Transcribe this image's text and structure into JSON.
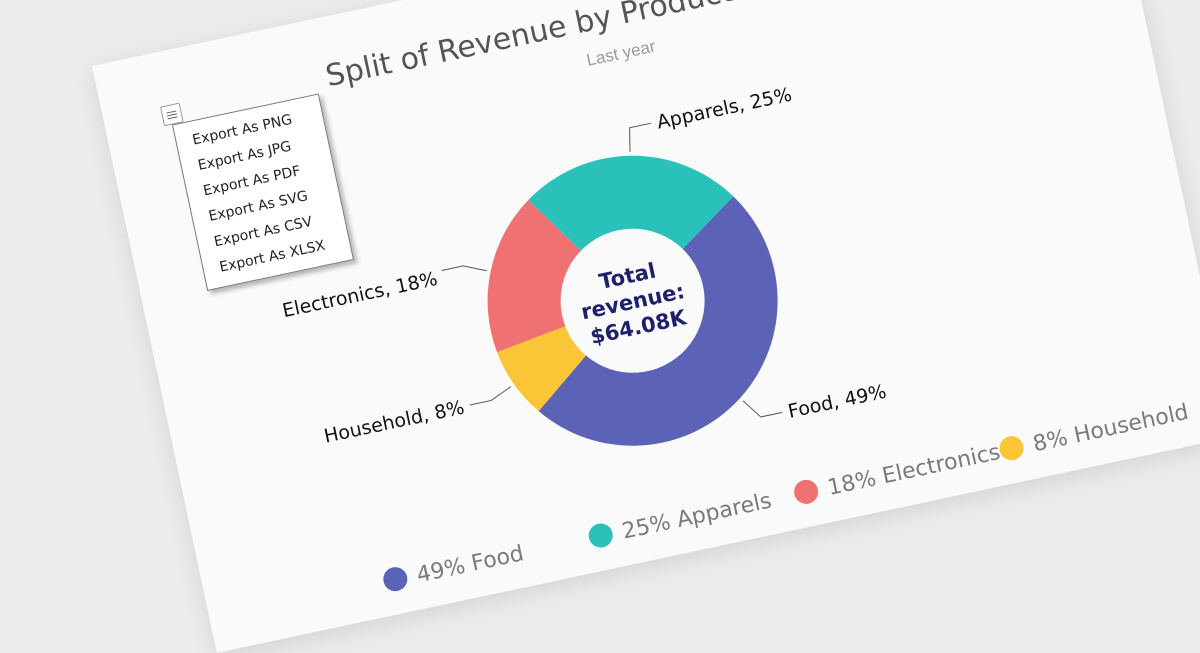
{
  "chart_data": {
    "type": "pie",
    "title": "Split of Revenue by Product Categories",
    "subtitle": "Last year",
    "center_label": [
      "Total",
      "revenue:",
      "$64.08K"
    ],
    "slices": [
      {
        "name": "Food",
        "value": 49,
        "color": "#5c62b5",
        "label": "Food, 49%",
        "legend": "49% Food"
      },
      {
        "name": "Household",
        "value": 8,
        "color": "#fbc538",
        "label": "Household, 8%",
        "legend": "8% Household"
      },
      {
        "name": "Electronics",
        "value": 18,
        "color": "#ef7171",
        "label": "Electronics, 18%",
        "legend": "18% Electronics"
      },
      {
        "name": "Apparels",
        "value": 25,
        "color": "#2bc1bb",
        "label": "Apparels, 25%",
        "legend": "25% Apparels"
      }
    ],
    "legend_placement": "bottom"
  },
  "export_menu": {
    "items": [
      "Export As PNG",
      "Export As JPG",
      "Export As PDF",
      "Export As SVG",
      "Export As CSV",
      "Export As XLSX"
    ]
  }
}
